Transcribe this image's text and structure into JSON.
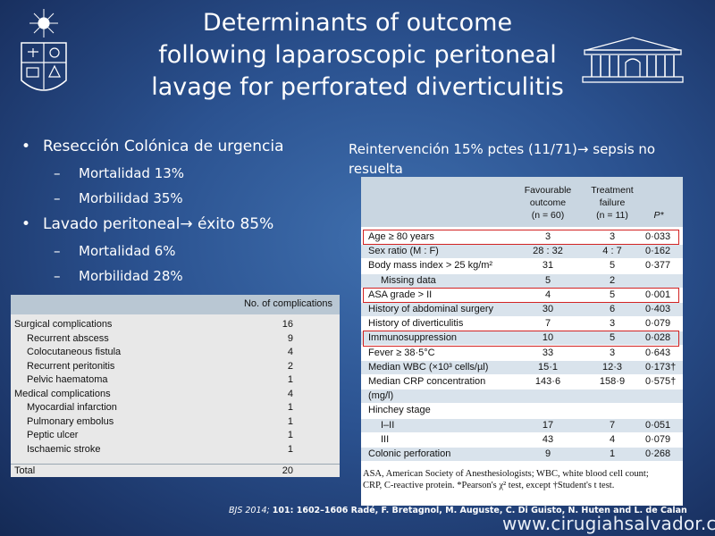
{
  "title": {
    "line1": "Determinants of outcome",
    "line2": "following laparoscopic peritoneal",
    "line3": "lavage for perforated diverticulitis"
  },
  "bullets": [
    {
      "text": "Resección Colónica de urgencia",
      "sub": [
        "Mortalidad 13%",
        "Morbilidad 35%"
      ]
    },
    {
      "text_before": "Lavado peritoneal",
      "arrow": "→",
      "text_after": " éxito 85%",
      "sub": [
        "Mortalidad 6%",
        "Morbilidad 28%"
      ]
    }
  ],
  "reintervention": {
    "text_before": "Reintervención 15% pctes (11/71)",
    "arrow": "→",
    "text_after": " sepsis no resuelta"
  },
  "complications_table": {
    "header": "No. of complications",
    "rows": [
      {
        "label": "Surgical complications",
        "value": "16",
        "indent": false
      },
      {
        "label": "Recurrent abscess",
        "value": "9",
        "indent": true
      },
      {
        "label": "Colocutaneous fistula",
        "value": "4",
        "indent": true
      },
      {
        "label": "Recurrent peritonitis",
        "value": "2",
        "indent": true
      },
      {
        "label": "Pelvic haematoma",
        "value": "1",
        "indent": true
      },
      {
        "label": "Medical complications",
        "value": "4",
        "indent": false
      },
      {
        "label": "Myocardial infarction",
        "value": "1",
        "indent": true
      },
      {
        "label": "Pulmonary embolus",
        "value": "1",
        "indent": true
      },
      {
        "label": "Peptic ulcer",
        "value": "1",
        "indent": true
      },
      {
        "label": "Ischaemic stroke",
        "value": "1",
        "indent": true
      },
      {
        "label": "Total",
        "value": "20",
        "indent": false,
        "total": true
      }
    ]
  },
  "outcome_table": {
    "headers": {
      "col1": [
        "Favourable",
        "outcome",
        "(n = 60)"
      ],
      "col2": [
        "Treatment",
        "failure",
        "(n = 11)"
      ],
      "col3": "P*"
    },
    "rows": [
      {
        "label": "Age ≥ 80 years",
        "a": "3",
        "b": "3",
        "p": "0·033",
        "indent": false,
        "highlight": true
      },
      {
        "label": "Sex ratio (M : F)",
        "a": "28 : 32",
        "b": "4 : 7",
        "p": "0·162",
        "indent": false
      },
      {
        "label": "Body mass index > 25 kg/m²",
        "a": "31",
        "b": "5",
        "p": "0·377",
        "indent": false
      },
      {
        "label": "Missing data",
        "a": "5",
        "b": "2",
        "p": "",
        "indent": true
      },
      {
        "label": "ASA grade > II",
        "a": "4",
        "b": "5",
        "p": "0·001",
        "indent": false,
        "highlight": true
      },
      {
        "label": "History of abdominal surgery",
        "a": "30",
        "b": "6",
        "p": "0·403",
        "indent": false
      },
      {
        "label": "History of diverticulitis",
        "a": "7",
        "b": "3",
        "p": "0·079",
        "indent": false
      },
      {
        "label": "Immunosuppression",
        "a": "10",
        "b": "5",
        "p": "0·028",
        "indent": false,
        "highlight": true
      },
      {
        "label": "Fever ≥ 38·5°C",
        "a": "33",
        "b": "3",
        "p": "0·643",
        "indent": false
      },
      {
        "label": "Median WBC (×10³ cells/µl)",
        "a": "15·1",
        "b": "12·3",
        "p": "0·173†",
        "indent": false
      },
      {
        "label": "Median CRP concentration",
        "a": "143·6",
        "b": "158·9",
        "p": "0·575†",
        "indent": false
      },
      {
        "label": "(mg/l)",
        "a": "",
        "b": "",
        "p": "",
        "indent": false
      },
      {
        "label": "Hinchey stage",
        "a": "",
        "b": "",
        "p": "",
        "indent": false
      },
      {
        "label": "I–II",
        "a": "17",
        "b": "7",
        "p": "0·051",
        "indent": true
      },
      {
        "label": "III",
        "a": "43",
        "b": "4",
        "p": "0·079",
        "indent": true
      },
      {
        "label": "Colonic perforation",
        "a": "9",
        "b": "1",
        "p": "0·268",
        "indent": false
      }
    ],
    "footnote": "ASA, American Society of Anesthesiologists; WBC, white blood cell count; CRP, C-reactive protein. *Pearson's χ² test, except †Student's t test."
  },
  "citation": {
    "journal": "BJS 2014; ",
    "ref": "101: 1602–1606",
    "authors": " Radé, F. Bretagnol, M. Auguste, C. Di Guisto, N. Huten and L. de Calan"
  },
  "website": "www.cirugiahsalvador.cl",
  "colors": {
    "highlight_box": "#d22222",
    "table_header": "#c9d6e1",
    "row_shade": "#d9e3ec",
    "background": "#2b5290"
  }
}
